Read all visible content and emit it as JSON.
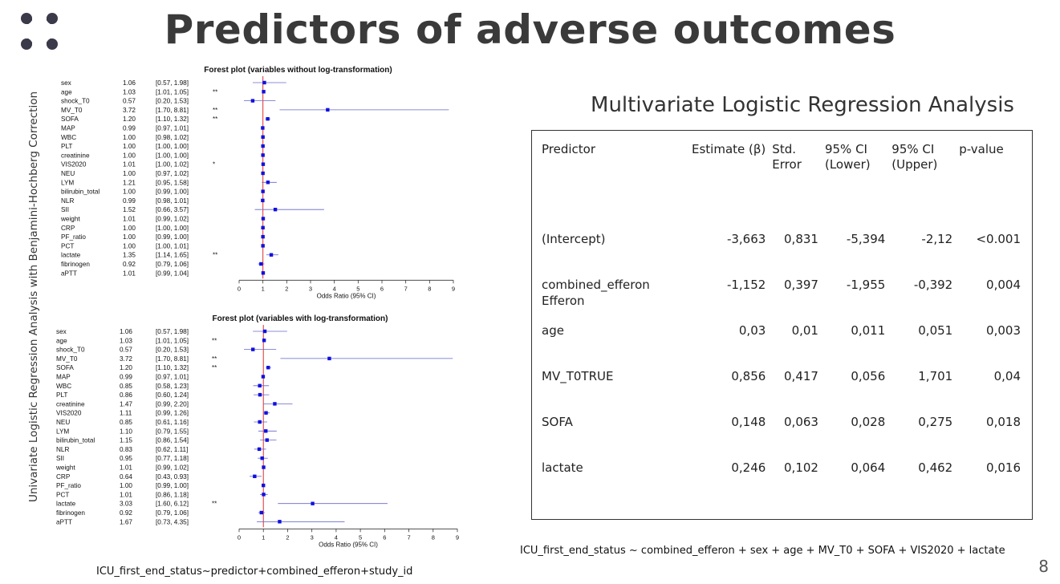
{
  "title": "Predictors of adverse outcomes",
  "vertical_label": "Univariate Logistic Regression Analysis with Benjamini-Hochberg Correction",
  "bottom_formula": "ICU_first_end_status~predictor+combined_efferon+study_id",
  "page_number": "8",
  "colors": {
    "marker": "#1010e0",
    "ci_line": "#6666cc",
    "ref_line": "#e03030",
    "title": "#3a3a3a"
  },
  "chart_data": [
    {
      "type": "forest",
      "title": "Forest plot (variables without log-transformation)",
      "xlabel": "Odds Ratio (95% CI)",
      "xlim": [
        0,
        9
      ],
      "xticks": [
        0,
        1,
        2,
        3,
        4,
        5,
        6,
        7,
        8,
        9
      ],
      "ref_line": 1,
      "rows": [
        {
          "label": "sex",
          "or": 1.06,
          "lo": 0.57,
          "hi": 1.98,
          "ci_text": "[0.57, 1.98]",
          "or_text": "1.06",
          "sig": ""
        },
        {
          "label": "age",
          "or": 1.03,
          "lo": 1.01,
          "hi": 1.05,
          "ci_text": "[1.01, 1.05]",
          "or_text": "1.03",
          "sig": "**"
        },
        {
          "label": "shock_T0",
          "or": 0.57,
          "lo": 0.2,
          "hi": 1.53,
          "ci_text": "[0.20, 1.53]",
          "or_text": "0.57",
          "sig": ""
        },
        {
          "label": "MV_T0",
          "or": 3.72,
          "lo": 1.7,
          "hi": 8.81,
          "ci_text": "[1.70, 8.81]",
          "or_text": "3.72",
          "sig": "**"
        },
        {
          "label": "SOFA",
          "or": 1.2,
          "lo": 1.1,
          "hi": 1.32,
          "ci_text": "[1.10, 1.32]",
          "or_text": "1.20",
          "sig": "**"
        },
        {
          "label": "MAP",
          "or": 0.99,
          "lo": 0.97,
          "hi": 1.01,
          "ci_text": "[0.97, 1.01]",
          "or_text": "0.99",
          "sig": ""
        },
        {
          "label": "WBC",
          "or": 1.0,
          "lo": 0.98,
          "hi": 1.02,
          "ci_text": "[0.98, 1.02]",
          "or_text": "1.00",
          "sig": ""
        },
        {
          "label": "PLT",
          "or": 1.0,
          "lo": 1.0,
          "hi": 1.0,
          "ci_text": "[1.00, 1.00]",
          "or_text": "1.00",
          "sig": ""
        },
        {
          "label": "creatinine",
          "or": 1.0,
          "lo": 1.0,
          "hi": 1.0,
          "ci_text": "[1.00, 1.00]",
          "or_text": "1.00",
          "sig": ""
        },
        {
          "label": "VIS2020",
          "or": 1.01,
          "lo": 1.0,
          "hi": 1.02,
          "ci_text": "[1.00, 1.02]",
          "or_text": "1.01",
          "sig": "*"
        },
        {
          "label": "NEU",
          "or": 1.0,
          "lo": 0.97,
          "hi": 1.02,
          "ci_text": "[0.97, 1.02]",
          "or_text": "1.00",
          "sig": ""
        },
        {
          "label": "LYM",
          "or": 1.21,
          "lo": 0.95,
          "hi": 1.58,
          "ci_text": "[0.95, 1.58]",
          "or_text": "1.21",
          "sig": ""
        },
        {
          "label": "bilirubin_total",
          "or": 1.0,
          "lo": 0.99,
          "hi": 1.0,
          "ci_text": "[0.99, 1.00]",
          "or_text": "1.00",
          "sig": ""
        },
        {
          "label": "NLR",
          "or": 0.99,
          "lo": 0.98,
          "hi": 1.01,
          "ci_text": "[0.98, 1.01]",
          "or_text": "0.99",
          "sig": ""
        },
        {
          "label": "SII",
          "or": 1.52,
          "lo": 0.66,
          "hi": 3.57,
          "ci_text": "[0.66, 3.57]",
          "or_text": "1.52",
          "sig": ""
        },
        {
          "label": "weight",
          "or": 1.01,
          "lo": 0.99,
          "hi": 1.02,
          "ci_text": "[0.99, 1.02]",
          "or_text": "1.01",
          "sig": ""
        },
        {
          "label": "CRP",
          "or": 1.0,
          "lo": 1.0,
          "hi": 1.0,
          "ci_text": "[1.00, 1.00]",
          "or_text": "1.00",
          "sig": ""
        },
        {
          "label": "PF_ratio",
          "or": 1.0,
          "lo": 0.99,
          "hi": 1.0,
          "ci_text": "[0.99, 1.00]",
          "or_text": "1.00",
          "sig": ""
        },
        {
          "label": "PCT",
          "or": 1.0,
          "lo": 1.0,
          "hi": 1.01,
          "ci_text": "[1.00, 1.01]",
          "or_text": "1.00",
          "sig": ""
        },
        {
          "label": "lactate",
          "or": 1.35,
          "lo": 1.14,
          "hi": 1.65,
          "ci_text": "[1.14, 1.65]",
          "or_text": "1.35",
          "sig": "**"
        },
        {
          "label": "fibrinogen",
          "or": 0.92,
          "lo": 0.79,
          "hi": 1.06,
          "ci_text": "[0.79, 1.06]",
          "or_text": "0.92",
          "sig": ""
        },
        {
          "label": "aPTT",
          "or": 1.01,
          "lo": 0.99,
          "hi": 1.04,
          "ci_text": "[0.99, 1.04]",
          "or_text": "1.01",
          "sig": ""
        }
      ]
    },
    {
      "type": "forest",
      "title": "Forest plot (variables with log-transformation)",
      "xlabel": "Odds Ratio (95% CI)",
      "xlim": [
        0,
        9
      ],
      "xticks": [
        0,
        1,
        2,
        3,
        4,
        5,
        6,
        7,
        8,
        9
      ],
      "ref_line": 1,
      "rows": [
        {
          "label": "sex",
          "or": 1.06,
          "lo": 0.57,
          "hi": 1.98,
          "ci_text": "[0.57, 1.98]",
          "or_text": "1.06",
          "sig": ""
        },
        {
          "label": "age",
          "or": 1.03,
          "lo": 1.01,
          "hi": 1.05,
          "ci_text": "[1.01, 1.05]",
          "or_text": "1.03",
          "sig": "**"
        },
        {
          "label": "shock_T0",
          "or": 0.57,
          "lo": 0.2,
          "hi": 1.53,
          "ci_text": "[0.20, 1.53]",
          "or_text": "0.57",
          "sig": ""
        },
        {
          "label": "MV_T0",
          "or": 3.72,
          "lo": 1.7,
          "hi": 8.81,
          "ci_text": "[1.70, 8.81]",
          "or_text": "3.72",
          "sig": "**"
        },
        {
          "label": "SOFA",
          "or": 1.2,
          "lo": 1.1,
          "hi": 1.32,
          "ci_text": "[1.10, 1.32]",
          "or_text": "1.20",
          "sig": "**"
        },
        {
          "label": "MAP",
          "or": 0.99,
          "lo": 0.97,
          "hi": 1.01,
          "ci_text": "[0.97, 1.01]",
          "or_text": "0.99",
          "sig": ""
        },
        {
          "label": "WBC",
          "or": 0.85,
          "lo": 0.58,
          "hi": 1.23,
          "ci_text": "[0.58, 1.23]",
          "or_text": "0.85",
          "sig": ""
        },
        {
          "label": "PLT",
          "or": 0.86,
          "lo": 0.6,
          "hi": 1.24,
          "ci_text": "[0.60, 1.24]",
          "or_text": "0.86",
          "sig": ""
        },
        {
          "label": "creatinine",
          "or": 1.47,
          "lo": 0.99,
          "hi": 2.2,
          "ci_text": "[0.99, 2.20]",
          "or_text": "1.47",
          "sig": ""
        },
        {
          "label": "VIS2020",
          "or": 1.11,
          "lo": 0.99,
          "hi": 1.26,
          "ci_text": "[0.99, 1.26]",
          "or_text": "1.11",
          "sig": ""
        },
        {
          "label": "NEU",
          "or": 0.85,
          "lo": 0.61,
          "hi": 1.16,
          "ci_text": "[0.61, 1.16]",
          "or_text": "0.85",
          "sig": ""
        },
        {
          "label": "LYM",
          "or": 1.1,
          "lo": 0.79,
          "hi": 1.55,
          "ci_text": "[0.79, 1.55]",
          "or_text": "1.10",
          "sig": ""
        },
        {
          "label": "bilirubin_total",
          "or": 1.15,
          "lo": 0.86,
          "hi": 1.54,
          "ci_text": "[0.86, 1.54]",
          "or_text": "1.15",
          "sig": ""
        },
        {
          "label": "NLR",
          "or": 0.83,
          "lo": 0.62,
          "hi": 1.11,
          "ci_text": "[0.62, 1.11]",
          "or_text": "0.83",
          "sig": ""
        },
        {
          "label": "SII",
          "or": 0.95,
          "lo": 0.77,
          "hi": 1.18,
          "ci_text": "[0.77, 1.18]",
          "or_text": "0.95",
          "sig": ""
        },
        {
          "label": "weight",
          "or": 1.01,
          "lo": 0.99,
          "hi": 1.02,
          "ci_text": "[0.99, 1.02]",
          "or_text": "1.01",
          "sig": ""
        },
        {
          "label": "CRP",
          "or": 0.64,
          "lo": 0.43,
          "hi": 0.93,
          "ci_text": "[0.43, 0.93]",
          "or_text": "0.64",
          "sig": ""
        },
        {
          "label": "PF_ratio",
          "or": 1.0,
          "lo": 0.99,
          "hi": 1.0,
          "ci_text": "[0.99, 1.00]",
          "or_text": "1.00",
          "sig": ""
        },
        {
          "label": "PCT",
          "or": 1.01,
          "lo": 0.86,
          "hi": 1.18,
          "ci_text": "[0.86, 1.18]",
          "or_text": "1.01",
          "sig": ""
        },
        {
          "label": "lactate",
          "or": 3.03,
          "lo": 1.6,
          "hi": 6.12,
          "ci_text": "[1.60, 6.12]",
          "or_text": "3.03",
          "sig": "**"
        },
        {
          "label": "fibrinogen",
          "or": 0.92,
          "lo": 0.79,
          "hi": 1.06,
          "ci_text": "[0.79, 1.06]",
          "or_text": "0.92",
          "sig": ""
        },
        {
          "label": "aPTT",
          "or": 1.67,
          "lo": 0.73,
          "hi": 4.35,
          "ci_text": "[0.73, 4.35]",
          "or_text": "1.67",
          "sig": ""
        }
      ]
    },
    {
      "type": "table",
      "title": "Multivariate Logistic Regression Analysis",
      "headers": [
        "Predictor",
        "Estimate (β)",
        "Std.\nError",
        "95% CI\n(Lower)",
        "95% CI\n(Upper)",
        "p-value"
      ],
      "rows": [
        [
          "(Intercept)",
          "-3,663",
          "0,831",
          "-5,394",
          "-2,12",
          "<0.001"
        ],
        [
          "combined_efferon\nEfferon",
          "-1,152",
          "0,397",
          "-1,955",
          "-0,392",
          "0,004"
        ],
        [
          "age",
          "0,03",
          "0,01",
          "0,011",
          "0,051",
          "0,003"
        ],
        [
          "MV_T0TRUE",
          "0,856",
          "0,417",
          "0,056",
          "1,701",
          "0,04"
        ],
        [
          "SOFA",
          "0,148",
          "0,063",
          "0,028",
          "0,275",
          "0,018"
        ],
        [
          "lactate",
          "0,246",
          "0,102",
          "0,064",
          "0,462",
          "0,016"
        ]
      ],
      "formula": "ICU_first_end_status ~ combined_efferon + sex + age + MV_T0 + SOFA + VIS2020 + lactate"
    }
  ]
}
